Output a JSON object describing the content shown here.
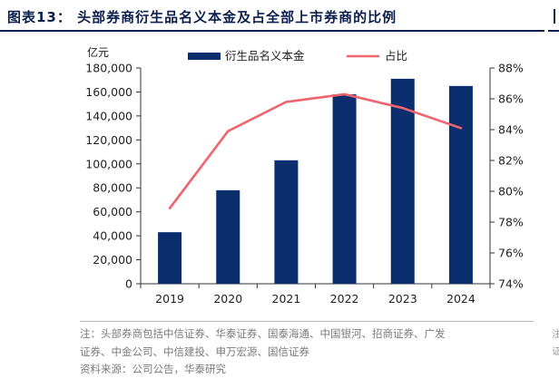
{
  "figure": {
    "title": "图表13：  头部券商衍生品名义本金及占全部上市券商的比例",
    "notes": [
      "注：头部券商包括中信证券、华泰证券、国泰海通、中国银河、招商证券、广发",
      "证券、中金公司、中信建投、申万宏源、国信证券",
      "资料来源：公司公告，华泰研究"
    ]
  },
  "chart_data": {
    "type": "bar",
    "categories": [
      "2019",
      "2020",
      "2021",
      "2022",
      "2023",
      "2024"
    ],
    "y_unit": "亿元",
    "ylim": [
      0,
      180000
    ],
    "y_ticks": [
      0,
      20000,
      40000,
      60000,
      80000,
      100000,
      120000,
      140000,
      160000,
      180000
    ],
    "y_tick_labels": [
      "0",
      "20,000",
      "40,000",
      "60,000",
      "80,000",
      "100,000",
      "120,000",
      "140,000",
      "160,000",
      "180,000"
    ],
    "y2lim": [
      74,
      88
    ],
    "y2_ticks": [
      74,
      76,
      78,
      80,
      82,
      84,
      86,
      88
    ],
    "y2_tick_labels": [
      "74%",
      "76%",
      "78%",
      "80%",
      "82%",
      "84%",
      "86%",
      "88%"
    ],
    "series": [
      {
        "name": "衍生品名义本金",
        "type": "bar",
        "axis": "left",
        "color": "#0b2e6e",
        "values": [
          43000,
          78000,
          103000,
          158000,
          171000,
          165000
        ]
      },
      {
        "name": "占比",
        "type": "line",
        "axis": "right",
        "color": "#f0646e",
        "values": [
          78.9,
          83.9,
          85.8,
          86.3,
          85.4,
          84.1
        ]
      }
    ],
    "legend_position": "top-center",
    "grid": false
  }
}
